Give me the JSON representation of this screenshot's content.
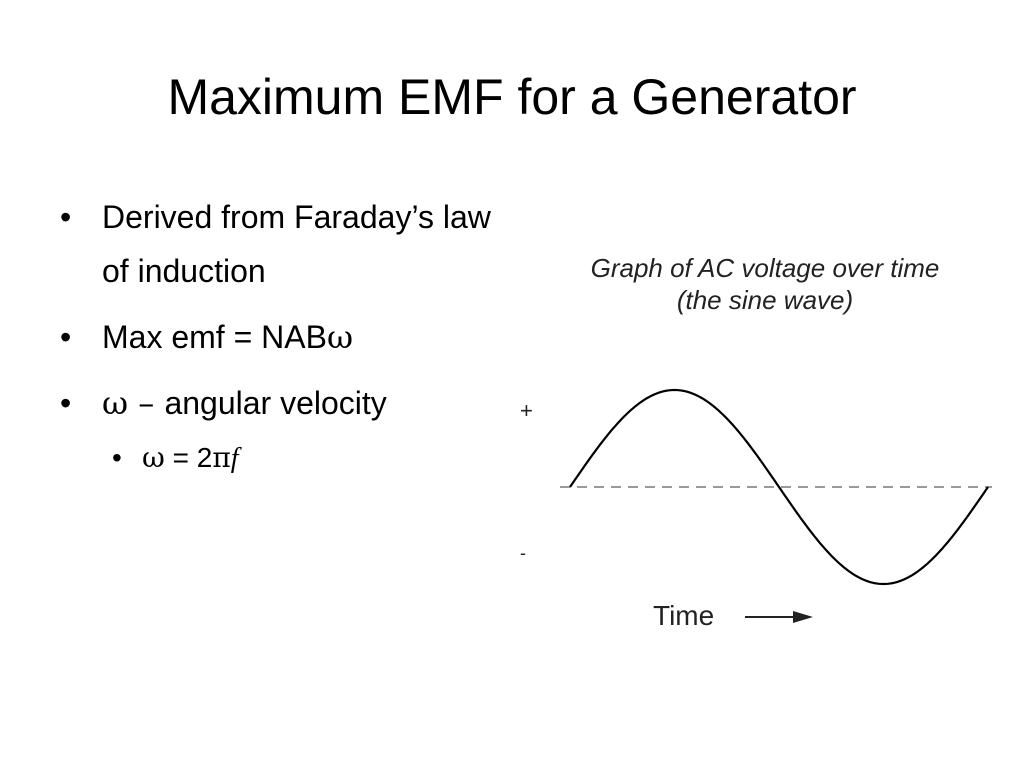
{
  "slide": {
    "title": "Maximum EMF for a Generator",
    "bullets": [
      {
        "text": "Derived from Faraday’s law of induction"
      },
      {
        "prefix": "Max emf = NAB",
        "symbol": "ω"
      },
      {
        "symbol": "ω",
        "dash": " – ",
        "text": "angular velocity"
      }
    ],
    "sub_bullet": {
      "symbol": "ω",
      "middle": " = 2",
      "pi": "π",
      "f": "f"
    }
  },
  "graph": {
    "title_line1": "Graph of AC voltage over time",
    "title_line2": "(the sine wave)",
    "plus_label": "+",
    "minus_label": "-",
    "time_label": "Time",
    "wave_color": "#000000",
    "baseline_color": "#999999"
  }
}
